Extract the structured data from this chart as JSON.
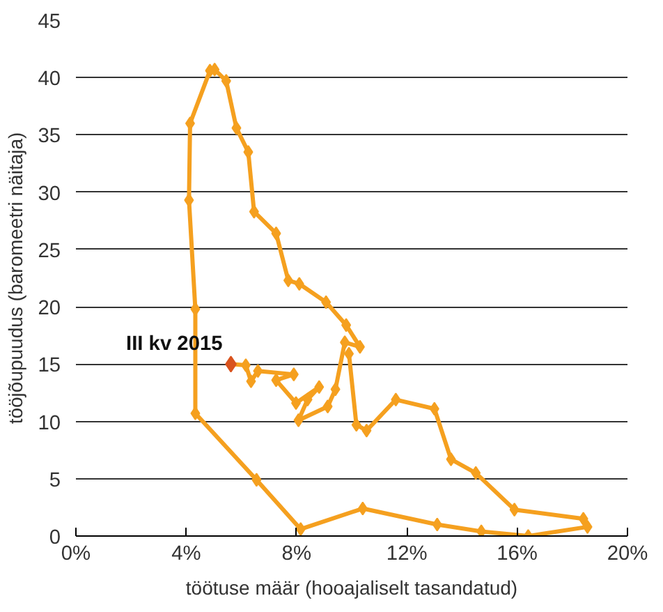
{
  "chart_data": {
    "type": "line",
    "xlabel": "töötuse määr (hooajaliselt tasandatud)",
    "ylabel": "tööjõupuudus (baromeetri näitaja)",
    "xlim": [
      0,
      20
    ],
    "ylim": [
      0,
      45
    ],
    "xticks": [
      {
        "value": 0,
        "label": "0%"
      },
      {
        "value": 4,
        "label": "4%"
      },
      {
        "value": 8,
        "label": "8%"
      },
      {
        "value": 12,
        "label": "12%"
      },
      {
        "value": 16,
        "label": "16%"
      },
      {
        "value": 20,
        "label": "20%"
      }
    ],
    "yticks": [
      0,
      5,
      10,
      15,
      20,
      25,
      30,
      35,
      40,
      45
    ],
    "grid": "y",
    "marker": "diamond",
    "line_style": "solid",
    "series": [
      {
        "color": "#f5a01f",
        "x": [
          9.9,
          10.17,
          10.54,
          11.6,
          13.0,
          13.6,
          14.5,
          15.9,
          18.4,
          18.55,
          16.4,
          14.7,
          13.1,
          10.4,
          8.15,
          6.55,
          4.33,
          4.33,
          4.1,
          4.14,
          4.86,
          5.03,
          5.45,
          5.82,
          6.25,
          6.46,
          7.26,
          7.7,
          8.1,
          9.07,
          9.8,
          10.3,
          9.75,
          9.41,
          9.13,
          8.07,
          8.4,
          8.82,
          7.98,
          7.26,
          7.9,
          6.6,
          6.35,
          6.16,
          5.62
        ],
        "values": [
          15.9,
          9.7,
          9.2,
          11.9,
          11.1,
          6.7,
          5.5,
          2.3,
          1.5,
          0.8,
          0.0,
          0.4,
          1.0,
          2.4,
          0.6,
          4.9,
          10.7,
          19.8,
          29.3,
          36.0,
          40.6,
          40.7,
          39.7,
          35.6,
          33.5,
          28.3,
          26.4,
          22.3,
          22.0,
          20.4,
          18.4,
          16.5,
          16.9,
          12.8,
          11.3,
          10.1,
          11.9,
          13.0,
          11.6,
          13.6,
          14.1,
          14.4,
          13.5,
          14.9,
          15.0
        ]
      },
      {
        "type": "scatter",
        "color": "#d9531e",
        "x": [
          5.62
        ],
        "values": [
          15.0
        ]
      }
    ],
    "annotations": [
      {
        "text": "III kv 2015",
        "x": 5.62,
        "y": 15.0
      }
    ]
  }
}
